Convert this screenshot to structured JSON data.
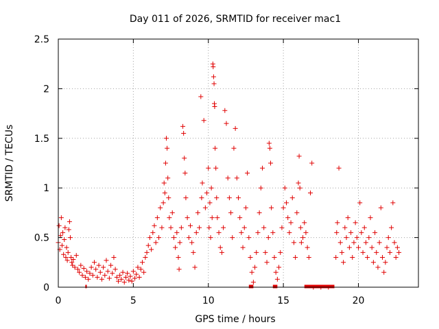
{
  "chart_data": {
    "type": "scatter",
    "title": "Day 011 of 2026, SRMTID for receiver mac1",
    "xlabel": "GPS time / hours",
    "ylabel": "SRMTID / TECUs",
    "xlim": [
      0,
      24
    ],
    "ylim": [
      0,
      2.5
    ],
    "xticks": [
      0,
      5,
      10,
      15,
      20
    ],
    "xtick_labels": [
      "0",
      "5",
      "10",
      "15",
      "20"
    ],
    "yticks": [
      0,
      0.5,
      1,
      1.5,
      2,
      2.5
    ],
    "ytick_labels": [
      "0",
      "0.5",
      "1",
      "1.5",
      "2",
      "2.5"
    ],
    "grid": true,
    "marker": "plus",
    "series": [
      {
        "name": "SRMTID",
        "color": "#e00000",
        "points": [
          [
            0.0,
            0.45
          ],
          [
            0.05,
            0.62
          ],
          [
            0.1,
            0.38
          ],
          [
            0.15,
            0.52
          ],
          [
            0.2,
            0.7
          ],
          [
            0.25,
            0.42
          ],
          [
            0.3,
            0.55
          ],
          [
            0.35,
            0.33
          ],
          [
            0.4,
            0.48
          ],
          [
            0.45,
            0.6
          ],
          [
            0.5,
            0.3
          ],
          [
            0.55,
            0.4
          ],
          [
            0.6,
            0.27
          ],
          [
            0.65,
            0.35
          ],
          [
            0.7,
            0.58
          ],
          [
            0.75,
            0.66
          ],
          [
            0.8,
            0.5
          ],
          [
            0.85,
            0.3
          ],
          [
            0.9,
            0.25
          ],
          [
            0.95,
            0.22
          ],
          [
            1.0,
            0.28
          ],
          [
            1.1,
            0.2
          ],
          [
            1.2,
            0.32
          ],
          [
            1.3,
            0.18
          ],
          [
            1.4,
            0.15
          ],
          [
            1.5,
            0.22
          ],
          [
            1.6,
            0.12
          ],
          [
            1.7,
            0.19
          ],
          [
            1.8,
            0.1
          ],
          [
            1.9,
            0.16
          ],
          [
            2.0,
            0.08
          ],
          [
            2.1,
            0.14
          ],
          [
            2.2,
            0.2
          ],
          [
            2.3,
            0.12
          ],
          [
            2.4,
            0.25
          ],
          [
            2.5,
            0.18
          ],
          [
            2.6,
            0.1
          ],
          [
            2.7,
            0.22
          ],
          [
            2.8,
            0.15
          ],
          [
            2.9,
            0.08
          ],
          [
            3.0,
            0.2
          ],
          [
            3.1,
            0.12
          ],
          [
            3.2,
            0.27
          ],
          [
            3.3,
            0.16
          ],
          [
            3.4,
            0.09
          ],
          [
            3.5,
            0.22
          ],
          [
            3.6,
            0.14
          ],
          [
            3.7,
            0.3
          ],
          [
            3.8,
            0.18
          ],
          [
            3.9,
            0.1
          ],
          [
            4.0,
            0.06
          ],
          [
            4.1,
            0.12
          ],
          [
            4.2,
            0.08
          ],
          [
            4.3,
            0.15
          ],
          [
            4.4,
            0.05
          ],
          [
            4.5,
            0.1
          ],
          [
            4.6,
            0.14
          ],
          [
            4.7,
            0.07
          ],
          [
            4.8,
            0.11
          ],
          [
            4.9,
            0.06
          ],
          [
            5.0,
            0.16
          ],
          [
            5.1,
            0.09
          ],
          [
            5.2,
            0.13
          ],
          [
            5.3,
            0.2
          ],
          [
            5.4,
            0.1
          ],
          [
            5.5,
            0.18
          ],
          [
            5.6,
            0.25
          ],
          [
            5.7,
            0.15
          ],
          [
            5.8,
            0.3
          ],
          [
            5.9,
            0.35
          ],
          [
            6.0,
            0.42
          ],
          [
            6.1,
            0.5
          ],
          [
            6.2,
            0.38
          ],
          [
            6.3,
            0.55
          ],
          [
            6.4,
            0.62
          ],
          [
            6.5,
            0.45
          ],
          [
            6.6,
            0.7
          ],
          [
            6.7,
            0.5
          ],
          [
            6.8,
            0.8
          ],
          [
            6.9,
            0.6
          ],
          [
            7.0,
            0.85
          ],
          [
            7.05,
            1.05
          ],
          [
            7.1,
            0.95
          ],
          [
            7.15,
            1.25
          ],
          [
            7.2,
            1.5
          ],
          [
            7.25,
            1.4
          ],
          [
            7.3,
            1.1
          ],
          [
            7.35,
            0.9
          ],
          [
            7.4,
            0.7
          ],
          [
            7.5,
            0.6
          ],
          [
            7.6,
            0.75
          ],
          [
            7.7,
            0.5
          ],
          [
            7.8,
            0.4
          ],
          [
            7.9,
            0.55
          ],
          [
            8.0,
            0.3
          ],
          [
            8.05,
            0.18
          ],
          [
            8.1,
            0.45
          ],
          [
            8.2,
            0.6
          ],
          [
            8.3,
            1.62
          ],
          [
            8.35,
            1.55
          ],
          [
            8.4,
            1.3
          ],
          [
            8.45,
            1.15
          ],
          [
            8.5,
            0.9
          ],
          [
            8.6,
            0.7
          ],
          [
            8.7,
            0.5
          ],
          [
            8.8,
            0.62
          ],
          [
            8.9,
            0.45
          ],
          [
            9.0,
            0.35
          ],
          [
            9.1,
            0.2
          ],
          [
            9.2,
            0.55
          ],
          [
            9.3,
            0.75
          ],
          [
            9.4,
            0.6
          ],
          [
            9.5,
            1.92
          ],
          [
            9.55,
            0.9
          ],
          [
            9.6,
            1.05
          ],
          [
            9.7,
            1.68
          ],
          [
            9.8,
            0.8
          ],
          [
            9.9,
            0.95
          ],
          [
            10.0,
            1.2
          ],
          [
            10.05,
            0.6
          ],
          [
            10.1,
            0.85
          ],
          [
            10.15,
            0.5
          ],
          [
            10.2,
            1.0
          ],
          [
            10.25,
            0.7
          ],
          [
            10.3,
            2.25
          ],
          [
            10.32,
            2.22
          ],
          [
            10.35,
            2.12
          ],
          [
            10.38,
            2.05
          ],
          [
            10.4,
            1.85
          ],
          [
            10.42,
            1.82
          ],
          [
            10.45,
            1.4
          ],
          [
            10.5,
            1.2
          ],
          [
            10.55,
            0.9
          ],
          [
            10.6,
            0.7
          ],
          [
            10.7,
            0.55
          ],
          [
            10.8,
            0.4
          ],
          [
            10.9,
            0.35
          ],
          [
            11.0,
            0.6
          ],
          [
            11.1,
            1.78
          ],
          [
            11.2,
            1.65
          ],
          [
            11.3,
            1.1
          ],
          [
            11.4,
            0.9
          ],
          [
            11.5,
            0.75
          ],
          [
            11.6,
            0.5
          ],
          [
            11.7,
            1.4
          ],
          [
            11.8,
            1.6
          ],
          [
            11.9,
            1.1
          ],
          [
            12.0,
            0.9
          ],
          [
            12.1,
            0.7
          ],
          [
            12.2,
            0.55
          ],
          [
            12.3,
            0.4
          ],
          [
            12.4,
            0.6
          ],
          [
            12.5,
            0.8
          ],
          [
            12.6,
            1.15
          ],
          [
            12.7,
            0.5
          ],
          [
            12.8,
            0.3
          ],
          [
            12.9,
            0.15
          ],
          [
            13.0,
            0.05
          ],
          [
            13.1,
            0.2
          ],
          [
            13.2,
            0.35
          ],
          [
            13.3,
            0.55
          ],
          [
            13.4,
            0.75
          ],
          [
            13.5,
            1.0
          ],
          [
            13.6,
            1.2
          ],
          [
            13.7,
            0.6
          ],
          [
            13.8,
            0.35
          ],
          [
            13.9,
            0.25
          ],
          [
            14.0,
            0.5
          ],
          [
            14.05,
            1.45
          ],
          [
            14.1,
            1.4
          ],
          [
            14.15,
            1.25
          ],
          [
            14.2,
            0.8
          ],
          [
            14.3,
            0.55
          ],
          [
            14.4,
            0.3
          ],
          [
            14.5,
            0.15
          ],
          [
            14.6,
            0.08
          ],
          [
            14.7,
            0.2
          ],
          [
            14.8,
            0.35
          ],
          [
            14.9,
            0.6
          ],
          [
            15.0,
            0.8
          ],
          [
            15.1,
            1.0
          ],
          [
            15.2,
            0.85
          ],
          [
            15.3,
            0.7
          ],
          [
            15.4,
            0.55
          ],
          [
            15.5,
            0.65
          ],
          [
            15.6,
            0.9
          ],
          [
            15.7,
            0.45
          ],
          [
            15.8,
            0.3
          ],
          [
            15.9,
            0.75
          ],
          [
            16.0,
            1.05
          ],
          [
            16.05,
            1.32
          ],
          [
            16.1,
            1.0
          ],
          [
            16.15,
            0.6
          ],
          [
            16.2,
            0.45
          ],
          [
            16.3,
            0.5
          ],
          [
            16.4,
            0.65
          ],
          [
            16.5,
            0.55
          ],
          [
            16.6,
            0.4
          ],
          [
            16.7,
            0.3
          ],
          [
            16.8,
            0.95
          ],
          [
            16.9,
            1.25
          ],
          [
            17.0,
            0.0
          ],
          [
            17.5,
            0.0
          ],
          [
            18.0,
            0.0
          ],
          [
            18.5,
            0.3
          ],
          [
            18.55,
            0.55
          ],
          [
            18.6,
            0.65
          ],
          [
            18.7,
            1.2
          ],
          [
            18.8,
            0.45
          ],
          [
            18.9,
            0.35
          ],
          [
            19.0,
            0.25
          ],
          [
            19.1,
            0.6
          ],
          [
            19.2,
            0.5
          ],
          [
            19.3,
            0.7
          ],
          [
            19.4,
            0.4
          ],
          [
            19.5,
            0.55
          ],
          [
            19.6,
            0.3
          ],
          [
            19.7,
            0.45
          ],
          [
            19.8,
            0.65
          ],
          [
            19.9,
            0.5
          ],
          [
            20.0,
            0.4
          ],
          [
            20.1,
            0.85
          ],
          [
            20.2,
            0.55
          ],
          [
            20.3,
            0.35
          ],
          [
            20.4,
            0.6
          ],
          [
            20.5,
            0.45
          ],
          [
            20.6,
            0.3
          ],
          [
            20.7,
            0.5
          ],
          [
            20.8,
            0.7
          ],
          [
            20.9,
            0.4
          ],
          [
            21.0,
            0.25
          ],
          [
            21.1,
            0.55
          ],
          [
            21.2,
            0.35
          ],
          [
            21.3,
            0.2
          ],
          [
            21.4,
            0.45
          ],
          [
            21.5,
            0.8
          ],
          [
            21.6,
            0.3
          ],
          [
            21.7,
            0.15
          ],
          [
            21.8,
            0.25
          ],
          [
            21.9,
            0.4
          ],
          [
            22.0,
            0.5
          ],
          [
            22.1,
            0.35
          ],
          [
            22.2,
            0.6
          ],
          [
            22.3,
            0.85
          ],
          [
            22.4,
            0.45
          ],
          [
            22.5,
            0.3
          ],
          [
            22.6,
            0.4
          ],
          [
            22.7,
            0.35
          ]
        ]
      }
    ],
    "zero_bar_segments": [
      [
        1.8,
        1.9
      ],
      [
        12.7,
        13.0
      ],
      [
        14.3,
        14.6
      ],
      [
        16.4,
        18.4
      ]
    ]
  }
}
